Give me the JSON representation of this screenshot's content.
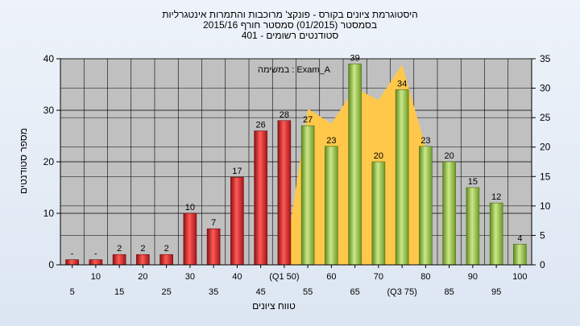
{
  "chart_data": {
    "type": "bar",
    "title_lines": [
      "היסטוגרמת ציונים בקורס - פונקצ' מרוכבות והתמרות אינטגרליות",
      "בסמסטר   (01/2015)  סמסטר חורף  2015/16",
      "סטודנטים רשומים - 401"
    ],
    "xlabel": "טווח ציונים",
    "ylabel": "מספר סטודנטים",
    "legend_text": "במשימה : Exam_A",
    "ylim_left": [
      0,
      40
    ],
    "ylim_right": [
      0,
      35
    ],
    "yticks_left": [
      "0",
      "10",
      "20",
      "30",
      "40"
    ],
    "yticks_right": [
      "0",
      "5",
      "10",
      "15",
      "20",
      "25",
      "30",
      "35"
    ],
    "grid": true,
    "categories": [
      "5",
      "10",
      "15",
      "20",
      "25",
      "30",
      "35",
      "40",
      "45",
      "(Q1 50)",
      "55",
      "60",
      "65",
      "70",
      "(Q3 75)",
      "80",
      "85",
      "90",
      "95",
      "100"
    ],
    "values": [
      1,
      1,
      2,
      2,
      2,
      10,
      7,
      17,
      26,
      28,
      27,
      23,
      39,
      20,
      34,
      23,
      20,
      15,
      12,
      4
    ],
    "value_labels": [
      "-",
      "-",
      "2",
      "2",
      "2",
      "10",
      "7",
      "17",
      "26",
      "28",
      "27",
      "23",
      "39",
      "20",
      "34",
      "23",
      "20",
      "15",
      "12",
      "4"
    ],
    "bar_colors": [
      "red",
      "red",
      "red",
      "red",
      "red",
      "red",
      "red",
      "red",
      "red",
      "red",
      "green",
      "green",
      "green",
      "green",
      "green",
      "green",
      "green",
      "green",
      "green",
      "green"
    ],
    "area_series": {
      "axis": "right",
      "color": "#ffc84a",
      "x_categories": [
        "(Q1 50)",
        "55",
        "60",
        "65",
        "70",
        "(Q3 75)",
        "80"
      ],
      "values": [
        0,
        26.5,
        24,
        30,
        28,
        34,
        20
      ]
    },
    "colors": {
      "red_bar": "#d9252b",
      "green_bar": "#8fb83b",
      "plot_bg": "#c0c0c0",
      "grid": "#000000"
    }
  }
}
